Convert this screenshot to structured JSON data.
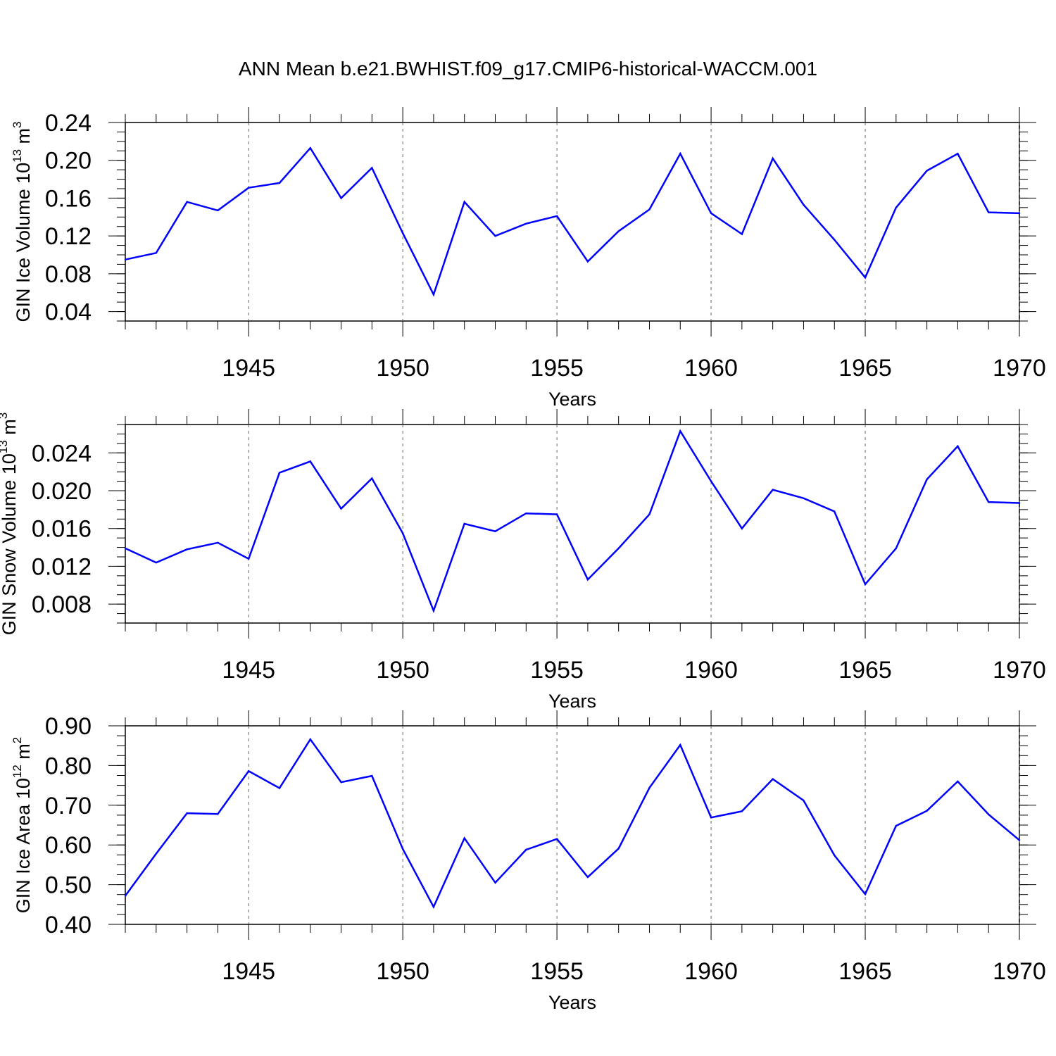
{
  "title": "ANN Mean b.e21.BWHIST.f09_g17.CMIP6-historical-WACCM.001",
  "line_color": "#0000ff",
  "chart_data": [
    {
      "type": "line",
      "ylabel": "GIN Ice Volume 10",
      "ylabel_exp": "13",
      "ylabel_unit": " m",
      "ylabel_unit_exp": "3",
      "xlabel": "Years",
      "xlim": [
        1941,
        1970
      ],
      "ylim": [
        0.03,
        0.24
      ],
      "yticks": [
        "0.04",
        "0.08",
        "0.12",
        "0.16",
        "0.20",
        "0.24"
      ],
      "xticks": [
        "1945",
        "1950",
        "1955",
        "1960",
        "1965",
        "1970"
      ],
      "x": [
        1941,
        1942,
        1943,
        1944,
        1945,
        1946,
        1947,
        1948,
        1949,
        1950,
        1951,
        1952,
        1953,
        1954,
        1955,
        1956,
        1957,
        1958,
        1959,
        1960,
        1961,
        1962,
        1963,
        1964,
        1965,
        1966,
        1967,
        1968,
        1969,
        1970
      ],
      "values": [
        0.095,
        0.102,
        0.156,
        0.147,
        0.171,
        0.176,
        0.213,
        0.16,
        0.192,
        0.123,
        0.058,
        0.156,
        0.12,
        0.133,
        0.141,
        0.093,
        0.125,
        0.148,
        0.207,
        0.144,
        0.122,
        0.202,
        0.153,
        0.116,
        0.076,
        0.15,
        0.189,
        0.207,
        0.145,
        0.144
      ]
    },
    {
      "type": "line",
      "ylabel": "GIN Snow Volume 10",
      "ylabel_exp": "13",
      "ylabel_unit": " m",
      "ylabel_unit_exp": "3",
      "xlabel": "Years",
      "xlim": [
        1941,
        1970
      ],
      "ylim": [
        0.006,
        0.027
      ],
      "yticks": [
        "0.008",
        "0.012",
        "0.016",
        "0.020",
        "0.024"
      ],
      "xticks": [
        "1945",
        "1950",
        "1955",
        "1960",
        "1965",
        "1970"
      ],
      "x": [
        1941,
        1942,
        1943,
        1944,
        1945,
        1946,
        1947,
        1948,
        1949,
        1950,
        1951,
        1952,
        1953,
        1954,
        1955,
        1956,
        1957,
        1958,
        1959,
        1960,
        1961,
        1962,
        1963,
        1964,
        1965,
        1966,
        1967,
        1968,
        1969,
        1970
      ],
      "values": [
        0.0139,
        0.0124,
        0.0138,
        0.0145,
        0.0128,
        0.0219,
        0.0231,
        0.0181,
        0.0213,
        0.0155,
        0.0073,
        0.0165,
        0.0157,
        0.0176,
        0.0175,
        0.0106,
        0.0139,
        0.0175,
        0.0263,
        0.021,
        0.016,
        0.0201,
        0.0192,
        0.0178,
        0.0101,
        0.0139,
        0.0212,
        0.0247,
        0.0188,
        0.0187
      ]
    },
    {
      "type": "line",
      "ylabel": "GIN Ice Area 10",
      "ylabel_exp": "12",
      "ylabel_unit": " m",
      "ylabel_unit_exp": "2",
      "xlabel": "Years",
      "xlim": [
        1941,
        1970
      ],
      "ylim": [
        0.4,
        0.9
      ],
      "yticks": [
        "0.40",
        "0.50",
        "0.60",
        "0.70",
        "0.80",
        "0.90"
      ],
      "xticks": [
        "1945",
        "1950",
        "1955",
        "1960",
        "1965",
        "1970"
      ],
      "x": [
        1941,
        1942,
        1943,
        1944,
        1945,
        1946,
        1947,
        1948,
        1949,
        1950,
        1951,
        1952,
        1953,
        1954,
        1955,
        1956,
        1957,
        1958,
        1959,
        1960,
        1961,
        1962,
        1963,
        1964,
        1965,
        1966,
        1967,
        1968,
        1969,
        1970
      ],
      "values": [
        0.472,
        0.578,
        0.68,
        0.678,
        0.786,
        0.743,
        0.866,
        0.758,
        0.774,
        0.59,
        0.444,
        0.617,
        0.505,
        0.588,
        0.615,
        0.519,
        0.591,
        0.744,
        0.852,
        0.669,
        0.685,
        0.766,
        0.712,
        0.574,
        0.476,
        0.648,
        0.686,
        0.76,
        0.677,
        0.612
      ]
    }
  ]
}
